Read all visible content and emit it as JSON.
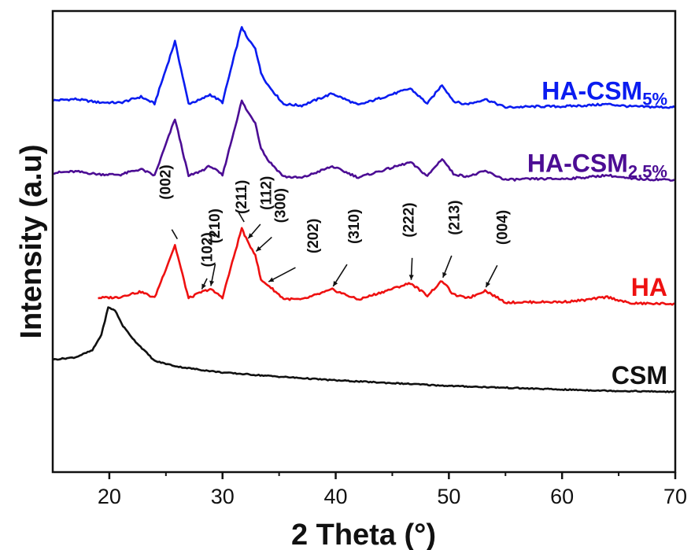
{
  "chart_data": {
    "type": "line",
    "xlabel": "2 Theta (°)",
    "ylabel": "Intensity (a.u)",
    "xlim": [
      15,
      70
    ],
    "ylim": [
      0,
      100
    ],
    "x_ticks": [
      "20",
      "30",
      "40",
      "50",
      "60",
      "70"
    ],
    "y_ticks_labeled": false,
    "grid": false,
    "legend": "none (series labelled directly at right end of each curve)",
    "series": [
      {
        "name": "HA-CSM",
        "label_main": "HA-CSM",
        "label_sub": "5%",
        "color": "#0a1cf0",
        "points": [
          [
            15,
            80.6
          ],
          [
            17,
            80.9
          ],
          [
            19,
            80.2
          ],
          [
            21,
            80.1
          ],
          [
            21.8,
            80.7
          ],
          [
            22.8,
            81.4
          ],
          [
            24,
            79.9
          ],
          [
            25.8,
            93.4
          ],
          [
            27,
            79.9
          ],
          [
            28.1,
            80.8
          ],
          [
            28.9,
            81.9
          ],
          [
            30,
            80.2
          ],
          [
            31.7,
            96.6
          ],
          [
            32.2,
            94.0
          ],
          [
            32.9,
            92.0
          ],
          [
            33.4,
            86.6
          ],
          [
            34.0,
            84.0
          ],
          [
            35.4,
            79.8
          ],
          [
            37,
            79.5
          ],
          [
            39.7,
            82.1
          ],
          [
            42,
            79.6
          ],
          [
            46.6,
            83.2
          ],
          [
            48.1,
            79.9
          ],
          [
            49.4,
            84.0
          ],
          [
            50.4,
            80.5
          ],
          [
            51.3,
            79.8
          ],
          [
            52,
            80.0
          ],
          [
            53.2,
            80.9
          ],
          [
            55,
            79.1
          ],
          [
            58,
            79.3
          ],
          [
            60,
            79.3
          ],
          [
            62,
            79.5
          ],
          [
            64,
            79.8
          ],
          [
            66,
            79.3
          ],
          [
            70,
            79.1
          ]
        ]
      },
      {
        "name": "HA-CSM",
        "label_main": "HA-CSM",
        "label_sub": "2.5%",
        "color": "#4c0d94",
        "points": [
          [
            15,
            64.9
          ],
          [
            17,
            65.2
          ],
          [
            19,
            64.6
          ],
          [
            21,
            64.5
          ],
          [
            21.8,
            65.1
          ],
          [
            22.8,
            65.7
          ],
          [
            24,
            64.3
          ],
          [
            25.8,
            76.6
          ],
          [
            27,
            64.2
          ],
          [
            28.1,
            65.3
          ],
          [
            28.9,
            66.4
          ],
          [
            30,
            64.4
          ],
          [
            31.7,
            80.5
          ],
          [
            32.2,
            78.2
          ],
          [
            32.9,
            75.8
          ],
          [
            33.4,
            70.3
          ],
          [
            34.0,
            67.7
          ],
          [
            35.4,
            64.1
          ],
          [
            37,
            63.8
          ],
          [
            39.7,
            66.3
          ],
          [
            42,
            63.9
          ],
          [
            46.6,
            67.2
          ],
          [
            48.1,
            64.2
          ],
          [
            49.4,
            68.0
          ],
          [
            50.4,
            64.7
          ],
          [
            51.3,
            64.2
          ],
          [
            52,
            64.3
          ],
          [
            53.2,
            65.3
          ],
          [
            55,
            63.4
          ],
          [
            58,
            63.6
          ],
          [
            60,
            63.6
          ],
          [
            62,
            63.9
          ],
          [
            64,
            64.4
          ],
          [
            66,
            63.6
          ],
          [
            70,
            63.4
          ]
        ]
      },
      {
        "name": "HA",
        "label_main": "HA",
        "label_sub": "",
        "color": "#ee1111",
        "points": [
          [
            19,
            37.8
          ],
          [
            20.8,
            37.9
          ],
          [
            21.8,
            38.6
          ],
          [
            22.8,
            39.1
          ],
          [
            24,
            37.8
          ],
          [
            25.8,
            49.2
          ],
          [
            27,
            37.7
          ],
          [
            28.1,
            39.0
          ],
          [
            28.9,
            39.7
          ],
          [
            30,
            37.9
          ],
          [
            31.7,
            52.9
          ],
          [
            32.2,
            50.0
          ],
          [
            32.9,
            47.2
          ],
          [
            33.4,
            41.6
          ],
          [
            34.0,
            40.6
          ],
          [
            35.4,
            37.6
          ],
          [
            37,
            37.4
          ],
          [
            39.7,
            39.6
          ],
          [
            42,
            37.4
          ],
          [
            46.6,
            41.0
          ],
          [
            48.1,
            38.3
          ],
          [
            49.4,
            41.5
          ],
          [
            50.4,
            38.5
          ],
          [
            51.3,
            37.9
          ],
          [
            52,
            38.0
          ],
          [
            53.2,
            39.4
          ],
          [
            55,
            36.8
          ],
          [
            58,
            36.9
          ],
          [
            60,
            36.9
          ],
          [
            62,
            37.3
          ],
          [
            64,
            38.0
          ],
          [
            66,
            36.6
          ],
          [
            70,
            36.5
          ]
        ]
      },
      {
        "name": "CSM",
        "label_main": "CSM",
        "label_sub": "",
        "color": "#111111",
        "points": [
          [
            15,
            24.4
          ],
          [
            17,
            24.9
          ],
          [
            18.5,
            26.4
          ],
          [
            19.3,
            29.8
          ],
          [
            19.9,
            35.7
          ],
          [
            20.5,
            35.1
          ],
          [
            21.2,
            31.7
          ],
          [
            22.2,
            28.6
          ],
          [
            24,
            24.1
          ],
          [
            26,
            22.9
          ],
          [
            28,
            22.2
          ],
          [
            30,
            21.6
          ],
          [
            35,
            20.7
          ],
          [
            40,
            19.9
          ],
          [
            45,
            19.3
          ],
          [
            50,
            18.7
          ],
          [
            55,
            18.3
          ],
          [
            60,
            17.9
          ],
          [
            65,
            17.6
          ],
          [
            70,
            17.4
          ]
        ]
      }
    ],
    "annotations": [
      {
        "text": "(002)",
        "x": 25.8,
        "y": 49.2
      },
      {
        "text": "(102)",
        "x": 28.1,
        "y": 39.0
      },
      {
        "text": "(210)",
        "x": 28.9,
        "y": 39.7
      },
      {
        "text": "(211)",
        "x": 31.7,
        "y": 52.9
      },
      {
        "text": "(112)",
        "x": 32.2,
        "y": 50.0
      },
      {
        "text": "(300)",
        "x": 32.9,
        "y": 47.2
      },
      {
        "text": "(202)",
        "x": 34.0,
        "y": 40.6
      },
      {
        "text": "(310)",
        "x": 39.7,
        "y": 39.6
      },
      {
        "text": "(222)",
        "x": 46.6,
        "y": 41.0
      },
      {
        "text": "(213)",
        "x": 49.4,
        "y": 41.5
      },
      {
        "text": "(004)",
        "x": 53.2,
        "y": 39.4
      }
    ]
  }
}
